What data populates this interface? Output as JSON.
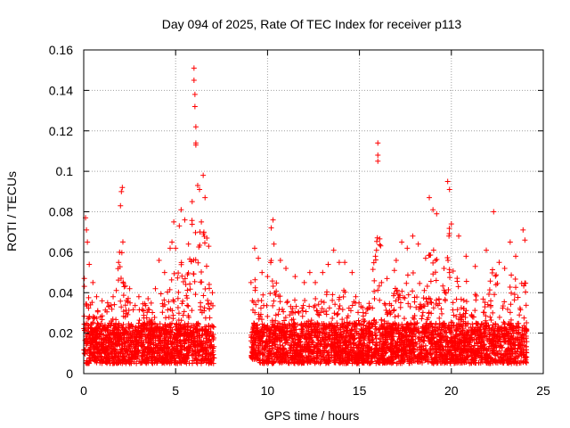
{
  "chart_data": {
    "type": "scatter",
    "title": "Day 094 of 2025, Rate Of TEC Index for receiver p113",
    "xlabel": "GPS time / hours",
    "ylabel": "ROTI / TECUs",
    "xlim": [
      0,
      25
    ],
    "ylim": [
      0,
      0.16
    ],
    "xticks": [
      0,
      5,
      10,
      15,
      20,
      25
    ],
    "xtick_labels": [
      "0",
      "5",
      "10",
      "15",
      "20",
      "25"
    ],
    "yticks": [
      0,
      0.02,
      0.04,
      0.06,
      0.08,
      0.1,
      0.12,
      0.14,
      0.16
    ],
    "ytick_labels": [
      "0",
      "0.02",
      "0.04",
      "0.06",
      "0.08",
      "0.1",
      "0.12",
      "0.14",
      "0.16"
    ],
    "grid": true,
    "marker": "+",
    "color": "#ff0000",
    "data_gap_hours": [
      7.1,
      9.1
    ],
    "series": [
      {
        "name": "ROTI",
        "points": [
          [
            0.1,
            0.077
          ],
          [
            0.15,
            0.071
          ],
          [
            0.2,
            0.065
          ],
          [
            0.3,
            0.054
          ],
          [
            0.5,
            0.045
          ],
          [
            0.7,
            0.038
          ],
          [
            1.0,
            0.036
          ],
          [
            1.3,
            0.035
          ],
          [
            1.6,
            0.038
          ],
          [
            1.9,
            0.055
          ],
          [
            2.0,
            0.083
          ],
          [
            2.05,
            0.09
          ],
          [
            2.1,
            0.092
          ],
          [
            2.2,
            0.043
          ],
          [
            2.5,
            0.042
          ],
          [
            3.0,
            0.038
          ],
          [
            3.5,
            0.037
          ],
          [
            3.9,
            0.042
          ],
          [
            4.1,
            0.056
          ],
          [
            4.4,
            0.05
          ],
          [
            4.7,
            0.062
          ],
          [
            4.8,
            0.065
          ],
          [
            4.9,
            0.075
          ],
          [
            5.0,
            0.062
          ],
          [
            5.2,
            0.073
          ],
          [
            5.3,
            0.081
          ],
          [
            5.5,
            0.076
          ],
          [
            5.7,
            0.064
          ],
          [
            5.9,
            0.085
          ],
          [
            6.0,
            0.151
          ],
          [
            6.0,
            0.145
          ],
          [
            6.05,
            0.138
          ],
          [
            6.05,
            0.132
          ],
          [
            6.1,
            0.122
          ],
          [
            6.1,
            0.114
          ],
          [
            6.1,
            0.113
          ],
          [
            6.2,
            0.093
          ],
          [
            6.3,
            0.091
          ],
          [
            6.4,
            0.075
          ],
          [
            6.5,
            0.098
          ],
          [
            6.6,
            0.087
          ],
          [
            6.7,
            0.067
          ],
          [
            6.8,
            0.063
          ],
          [
            7.0,
            0.04
          ],
          [
            9.1,
            0.045
          ],
          [
            9.3,
            0.062
          ],
          [
            9.5,
            0.057
          ],
          [
            9.7,
            0.05
          ],
          [
            10.0,
            0.048
          ],
          [
            10.2,
            0.072
          ],
          [
            10.3,
            0.076
          ],
          [
            10.35,
            0.064
          ],
          [
            10.7,
            0.056
          ],
          [
            11.0,
            0.052
          ],
          [
            11.5,
            0.048
          ],
          [
            12.0,
            0.045
          ],
          [
            12.3,
            0.05
          ],
          [
            12.6,
            0.045
          ],
          [
            13.0,
            0.05
          ],
          [
            13.3,
            0.054
          ],
          [
            13.6,
            0.061
          ],
          [
            13.9,
            0.055
          ],
          [
            14.2,
            0.055
          ],
          [
            14.6,
            0.05
          ],
          [
            14.8,
            0.038
          ],
          [
            15.2,
            0.024
          ],
          [
            15.6,
            0.02
          ],
          [
            16.0,
            0.114
          ],
          [
            16.0,
            0.108
          ],
          [
            16.0,
            0.105
          ],
          [
            16.2,
            0.045
          ],
          [
            16.5,
            0.047
          ],
          [
            16.9,
            0.051
          ],
          [
            17.0,
            0.056
          ],
          [
            17.3,
            0.065
          ],
          [
            17.6,
            0.062
          ],
          [
            17.9,
            0.068
          ],
          [
            18.2,
            0.064
          ],
          [
            18.6,
            0.057
          ],
          [
            18.8,
            0.087
          ],
          [
            19.0,
            0.081
          ],
          [
            19.2,
            0.079
          ],
          [
            19.6,
            0.052
          ],
          [
            19.8,
            0.095
          ],
          [
            19.9,
            0.091
          ],
          [
            20.0,
            0.074
          ],
          [
            20.4,
            0.068
          ],
          [
            20.8,
            0.058
          ],
          [
            21.3,
            0.053
          ],
          [
            21.9,
            0.061
          ],
          [
            22.3,
            0.08
          ],
          [
            22.6,
            0.055
          ],
          [
            22.9,
            0.052
          ],
          [
            23.2,
            0.065
          ],
          [
            23.5,
            0.058
          ],
          [
            23.9,
            0.071
          ],
          [
            24.0,
            0.066
          ]
        ]
      }
    ]
  }
}
